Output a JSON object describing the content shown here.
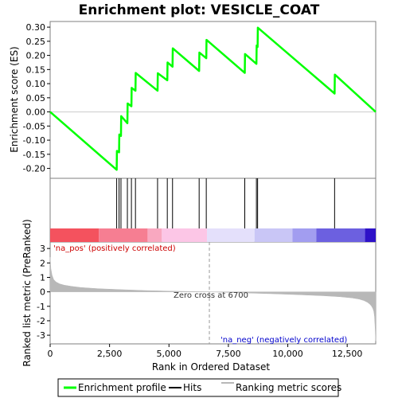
{
  "chart_data": {
    "type": "line",
    "title": "Enrichment plot: VESICLE_COAT",
    "top_panel": {
      "ylabel": "Enrichment score (ES)",
      "ylim": [
        -0.235,
        0.32
      ],
      "yticks": [
        -0.2,
        -0.15,
        -0.1,
        -0.05,
        0.0,
        0.05,
        0.1,
        0.15,
        0.2,
        0.25,
        0.3
      ],
      "ytick_labels": [
        "-0.20",
        "-0.15",
        "-0.10",
        "-0.05",
        "0.00",
        "0.05",
        "0.10",
        "0.15",
        "0.20",
        "0.25",
        "0.30"
      ],
      "series": [
        {
          "name": "Enrichment profile",
          "color": "#00ff00",
          "x": [
            0,
            2800,
            2810,
            2900,
            2910,
            2980,
            2990,
            3250,
            3260,
            3420,
            3430,
            3590,
            3600,
            4520,
            4530,
            4930,
            4940,
            5150,
            5160,
            6270,
            6280,
            6570,
            6580,
            8190,
            8200,
            8680,
            8690,
            8730,
            8740,
            11970,
            11980,
            13700
          ],
          "y": [
            0.0,
            -0.205,
            -0.138,
            -0.143,
            -0.08,
            -0.085,
            -0.015,
            -0.04,
            0.03,
            0.02,
            0.085,
            0.075,
            0.138,
            0.075,
            0.137,
            0.112,
            0.175,
            0.16,
            0.225,
            0.145,
            0.21,
            0.19,
            0.255,
            0.138,
            0.205,
            0.17,
            0.235,
            0.23,
            0.298,
            0.065,
            0.132,
            0.0
          ]
        }
      ]
    },
    "hits": {
      "name": "Hits",
      "color": "#000000",
      "x": [
        2800,
        2900,
        2980,
        3250,
        3420,
        3590,
        4520,
        4930,
        5150,
        6270,
        6570,
        8190,
        8680,
        8730,
        11970
      ]
    },
    "color_bar": {
      "segments": [
        {
          "x0": 0,
          "x1": 2050,
          "color": "#f4525e"
        },
        {
          "x0": 2050,
          "x1": 4100,
          "color": "#f67e92"
        },
        {
          "x0": 4100,
          "x1": 4700,
          "color": "#f9a8c0"
        },
        {
          "x0": 4700,
          "x1": 6600,
          "color": "#fcc6e6"
        },
        {
          "x0": 6600,
          "x1": 8600,
          "color": "#e4e0fb"
        },
        {
          "x0": 8600,
          "x1": 10200,
          "color": "#c9c6f6"
        },
        {
          "x0": 10200,
          "x1": 11200,
          "color": "#a29df0"
        },
        {
          "x0": 11200,
          "x1": 13250,
          "color": "#6c60e0"
        },
        {
          "x0": 13250,
          "x1": 13700,
          "color": "#2e12c8"
        }
      ]
    },
    "bottom_panel": {
      "ylabel": "Ranked list metric (PreRanked)",
      "xlabel": "Rank in Ordered Dataset",
      "ylim": [
        -3.6,
        3.45
      ],
      "yticks": [
        -3,
        -2,
        -1,
        0,
        1,
        2,
        3
      ],
      "ytick_labels": [
        "-3",
        "-2",
        "-1",
        "0",
        "1",
        "2",
        "3"
      ],
      "series": [
        {
          "name": "Ranking metric scores",
          "color": "#b8b8b8",
          "x": [
            0,
            30,
            80,
            150,
            250,
            400,
            600,
            900,
            1300,
            2000,
            3000,
            4000,
            5000,
            6000,
            6700,
            7500,
            8500,
            9500,
            10500,
            11500,
            12200,
            12700,
            13000,
            13200,
            13350,
            13450,
            13520,
            13580,
            13620,
            13650,
            13680,
            13700
          ],
          "y": [
            2.4,
            1.6,
            1.15,
            0.85,
            0.68,
            0.55,
            0.46,
            0.38,
            0.3,
            0.22,
            0.15,
            0.09,
            0.05,
            0.02,
            0.0,
            -0.04,
            -0.09,
            -0.14,
            -0.2,
            -0.27,
            -0.34,
            -0.42,
            -0.5,
            -0.6,
            -0.72,
            -0.85,
            -0.98,
            -1.15,
            -1.35,
            -1.7,
            -2.6,
            -3.4
          ]
        }
      ],
      "annotations": {
        "pos_label": "'na_pos' (positively correlated)",
        "neg_label": "'na_neg' (negatively correlated)",
        "zero_cross_label": "Zero cross at 6700",
        "zero_cross_x": 6700
      }
    },
    "xaxis": {
      "xlim": [
        0,
        13700
      ],
      "xticks": [
        0,
        2500,
        5000,
        7500,
        10000,
        12500
      ],
      "xtick_labels": [
        "0",
        "2,500",
        "5,000",
        "7,500",
        "10,000",
        "12,500"
      ]
    },
    "legend": {
      "placement": "bottom",
      "entries": [
        {
          "label": "Enrichment profile",
          "color": "#00ff00"
        },
        {
          "label": "Hits",
          "color": "#000000"
        },
        {
          "label": "Ranking metric scores",
          "color": "#b8b8b8"
        }
      ]
    }
  }
}
